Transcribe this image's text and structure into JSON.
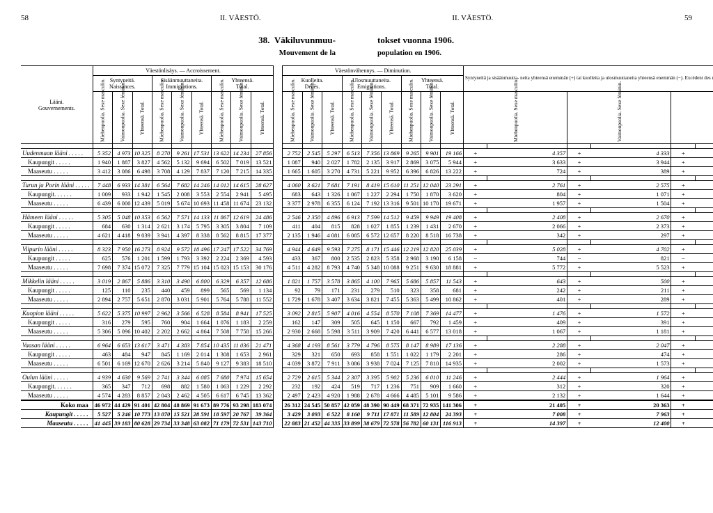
{
  "header": {
    "page_left": "58",
    "section_left": "II.  VÄESTÖ.",
    "section_right": "II.  VÄESTÖ.",
    "page_right": "59"
  },
  "title": {
    "number": "38.",
    "left": "Väkiluvunmuu-",
    "right": "tokset vuonna 1906.",
    "sub_left": "Mouvement de la",
    "sub_right": "population en 1906."
  },
  "leftcols": {
    "gov_fi": "Lääni.",
    "gov_fr": "Gouvernements.",
    "accr": "Väestönlisäys. — Accroissement.",
    "births_fi": "Syntyneitä.",
    "births_fr": "Naissances.",
    "immig_fi": "Sisäänmuuttaneita.",
    "immig_fr": "Immigrations.",
    "tot_fi": "Yhteensä.",
    "tot_fr": "Total.",
    "m": "Miehenpuolia. Sexe masculin.",
    "f": "Vaimonpuolia. Sexe féminin.",
    "t": "Yhteensä. Total."
  },
  "rightcols": {
    "dimin": "Väestönvähennys. — Diminution.",
    "deaths_fi": "Kuolleita.",
    "deaths_fr": "Décès.",
    "emig_fi": "Ulosmuuttaneita.",
    "emig_fr": "Emigrations.",
    "tot_fi": "Yhteensä.",
    "tot_fr": "Total.",
    "excess": "Syntyneitä ja sisäänmuutta- neita yhteensä enemmän (+) tai kuolleita ja ulosmuuttaneita yhteensä enemmän (−). Excédent des naissances et des immigrations."
  },
  "rows": [
    {
      "label": "Uudenmaan lääni",
      "italic": true,
      "left": [
        "5 352",
        "4 973",
        "10 325",
        "8 270",
        "9 261",
        "17 531",
        "13 622",
        "14 234",
        "27 856"
      ],
      "right": [
        "2 752",
        "2 545",
        "5 297",
        "6 513",
        "7 356",
        "13 869",
        "9 265",
        "9 901",
        "19 166",
        "+",
        "4 357",
        "+",
        "4 333",
        "+",
        "8 690"
      ]
    },
    {
      "label": "Kaupungit",
      "indent": true,
      "left": [
        "1 940",
        "1 887",
        "3 827",
        "4 562",
        "5 132",
        "9 694",
        "6 502",
        "7 019",
        "13 521"
      ],
      "right": [
        "1 087",
        "940",
        "2 027",
        "1 782",
        "2 135",
        "3 917",
        "2 869",
        "3 075",
        "5 944",
        "+",
        "3 633",
        "+",
        "3 944",
        "+",
        "7 577"
      ]
    },
    {
      "label": "Maaseutu",
      "indent": true,
      "left": [
        "3 412",
        "3 086",
        "6 498",
        "3 708",
        "4 129",
        "7 837",
        "7 120",
        "7 215",
        "14 335"
      ],
      "right": [
        "1 665",
        "1 605",
        "3 270",
        "4 731",
        "5 221",
        "9 952",
        "6 396",
        "6 826",
        "13 222",
        "+",
        "724",
        "+",
        "389",
        "+",
        "1 113"
      ]
    },
    {
      "spacer": true
    },
    {
      "label": "Turun ja Porin lääni",
      "italic": true,
      "left": [
        "7 448",
        "6 933",
        "14 381",
        "6 564",
        "7 682",
        "14 246",
        "14 012",
        "14 615",
        "28 627"
      ],
      "right": [
        "4 060",
        "3 621",
        "7 681",
        "7 191",
        "8 419",
        "15 610",
        "11 251",
        "12 040",
        "23 291",
        "+",
        "2 761",
        "+",
        "2 575",
        "+",
        "5 336"
      ]
    },
    {
      "label": "Kaupungit.",
      "indent": true,
      "left": [
        "1 009",
        "933",
        "1 942",
        "1 545",
        "2 008",
        "3 553",
        "2 554",
        "2 941",
        "5 495"
      ],
      "right": [
        "683",
        "643",
        "1 326",
        "1 067",
        "1 227",
        "2 294",
        "1 750",
        "1 870",
        "3 620",
        "+",
        "804",
        "+",
        "1 071",
        "+",
        "1 875"
      ]
    },
    {
      "label": "Maaseutu",
      "indent": true,
      "left": [
        "6 439",
        "6 000",
        "12 439",
        "5 019",
        "5 674",
        "10 693",
        "11 458",
        "11 674",
        "23 132"
      ],
      "right": [
        "3 377",
        "2 978",
        "6 355",
        "6 124",
        "7 192",
        "13 316",
        "9 501",
        "10 170",
        "19 671",
        "+",
        "1 957",
        "+",
        "1 504",
        "+",
        "3 461"
      ]
    },
    {
      "spacer": true
    },
    {
      "label": "Hämeen lääni",
      "italic": true,
      "left": [
        "5 305",
        "5 048",
        "10 353",
        "6 562",
        "7 571",
        "14 133",
        "11 867",
        "12 619",
        "24 486"
      ],
      "right": [
        "2 546",
        "2 350",
        "4 896",
        "6 913",
        "7 599",
        "14 512",
        "9 459",
        "9 949",
        "19 408",
        "+",
        "2 408",
        "+",
        "2 670",
        "+",
        "5 078"
      ]
    },
    {
      "label": "Kaupungit",
      "indent": true,
      "left": [
        "684",
        "630",
        "1 314",
        "2 621",
        "3 174",
        "5 795",
        "3 305",
        "3 804",
        "7 109"
      ],
      "right": [
        "411",
        "404",
        "815",
        "828",
        "1 027",
        "1 855",
        "1 239",
        "1 431",
        "2 670",
        "+",
        "2 066",
        "+",
        "2 373",
        "+",
        "4 439"
      ]
    },
    {
      "label": "Maaseutu",
      "indent": true,
      "left": [
        "4 621",
        "4 418",
        "9 039",
        "3 941",
        "4 397",
        "8 338",
        "8 562",
        "8 815",
        "17 377"
      ],
      "right": [
        "2 135",
        "1 946",
        "4 081",
        "6 085",
        "6 572",
        "12 657",
        "8 220",
        "8 518",
        "16 738",
        "+",
        "342",
        "+",
        "297",
        "+",
        "639"
      ]
    },
    {
      "spacer": true
    },
    {
      "label": "Viipurin lääni",
      "italic": true,
      "left": [
        "8 323",
        "7 950",
        "16 273",
        "8 924",
        "9 572",
        "18 496",
        "17 247",
        "17 522",
        "34 769"
      ],
      "right": [
        "4 944",
        "4 649",
        "9 593",
        "7 275",
        "8 171",
        "15 446",
        "12 219",
        "12 820",
        "25 039",
        "+",
        "5 028",
        "+",
        "4 702",
        "+",
        "9 730"
      ]
    },
    {
      "label": "Kaupungit",
      "indent": true,
      "left": [
        "625",
        "576",
        "1 201",
        "1 599",
        "1 793",
        "3 392",
        "2 224",
        "2 369",
        "4 593"
      ],
      "right": [
        "433",
        "367",
        "800",
        "2 535",
        "2 823",
        "5 358",
        "2 968",
        "3 190",
        "6 158",
        "−",
        "744",
        "−",
        "821",
        "−",
        "1 565"
      ]
    },
    {
      "label": "Maaseutu",
      "indent": true,
      "left": [
        "7 698",
        "7 374",
        "15 072",
        "7 325",
        "7 779",
        "15 104",
        "15 023",
        "15 153",
        "30 176"
      ],
      "right": [
        "4 511",
        "4 282",
        "8 793",
        "4 740",
        "5 348",
        "10 088",
        "9 251",
        "9 630",
        "18 881",
        "+",
        "5 772",
        "+",
        "5 523",
        "+",
        "11 295"
      ]
    },
    {
      "spacer": true
    },
    {
      "label": "Mikkelin lääni",
      "italic": true,
      "left": [
        "3 019",
        "2 867",
        "5 886",
        "3 310",
        "3 490",
        "6 800",
        "6 329",
        "6 357",
        "12 686"
      ],
      "right": [
        "1 821",
        "1 757",
        "3 578",
        "3 865",
        "4 100",
        "7 965",
        "5 686",
        "5 857",
        "11 543",
        "+",
        "643",
        "+",
        "500",
        "+",
        "1 143"
      ]
    },
    {
      "label": "Kaupungit",
      "indent": true,
      "left": [
        "125",
        "110",
        "235",
        "440",
        "459",
        "899",
        "565",
        "569",
        "1 134"
      ],
      "right": [
        "92",
        "79",
        "171",
        "231",
        "279",
        "510",
        "323",
        "358",
        "681",
        "+",
        "242",
        "+",
        "211",
        "+",
        "453"
      ]
    },
    {
      "label": "Maaseutu",
      "indent": true,
      "left": [
        "2 894",
        "2 757",
        "5 651",
        "2 870",
        "3 031",
        "5 901",
        "5 764",
        "5 788",
        "11 552"
      ],
      "right": [
        "1 729",
        "1 678",
        "3 407",
        "3 634",
        "3 821",
        "7 455",
        "5 363",
        "5 499",
        "10 862",
        "+",
        "401",
        "+",
        "289",
        "+",
        "690"
      ]
    },
    {
      "spacer": true
    },
    {
      "label": "Kuopion lääni",
      "italic": true,
      "left": [
        "5 622",
        "5 375",
        "10 997",
        "2 962",
        "3 566",
        "6 528",
        "8 584",
        "8 941",
        "17 525"
      ],
      "right": [
        "3 092",
        "2 815",
        "5 907",
        "4 016",
        "4 554",
        "8 570",
        "7 108",
        "7 369",
        "14 477",
        "+",
        "1 476",
        "+",
        "1 572",
        "+",
        "3 048"
      ]
    },
    {
      "label": "Kaupungit",
      "indent": true,
      "left": [
        "316",
        "279",
        "595",
        "760",
        "904",
        "1 664",
        "1 076",
        "1 183",
        "2 259"
      ],
      "right": [
        "162",
        "147",
        "309",
        "505",
        "645",
        "1 150",
        "667",
        "792",
        "1 459",
        "+",
        "409",
        "+",
        "391",
        "+",
        "800"
      ]
    },
    {
      "label": "Maaseutu",
      "indent": true,
      "left": [
        "5 306",
        "5 096",
        "10 402",
        "2 202",
        "2 662",
        "4 864",
        "7 508",
        "7 758",
        "15 266"
      ],
      "right": [
        "2 930",
        "2 668",
        "5 598",
        "3 511",
        "3 909",
        "7 420",
        "6 441",
        "6 577",
        "13 018",
        "+",
        "1 067",
        "+",
        "1 181",
        "+",
        "2 248"
      ]
    },
    {
      "spacer": true
    },
    {
      "label": "Vaasan lääni",
      "italic": true,
      "left": [
        "6 964",
        "6 653",
        "13 617",
        "3 471",
        "4 383",
        "7 854",
        "10 435",
        "11 036",
        "21 471"
      ],
      "right": [
        "4 368",
        "4 193",
        "8 561",
        "3 779",
        "4 796",
        "8 575",
        "8 147",
        "8 989",
        "17 136",
        "+",
        "2 288",
        "+",
        "2 047",
        "+",
        "4 335"
      ]
    },
    {
      "label": "Kaupungit",
      "indent": true,
      "left": [
        "463",
        "484",
        "947",
        "845",
        "1 169",
        "2 014",
        "1 308",
        "1 653",
        "2 961"
      ],
      "right": [
        "329",
        "321",
        "650",
        "693",
        "858",
        "1 551",
        "1 022",
        "1 179",
        "2 201",
        "+",
        "286",
        "+",
        "474",
        "+",
        "760"
      ]
    },
    {
      "label": "Maaseutu",
      "indent": true,
      "left": [
        "6 501",
        "6 169",
        "12 670",
        "2 626",
        "3 214",
        "5 840",
        "9 127",
        "9 383",
        "18 510"
      ],
      "right": [
        "4 039",
        "3 872",
        "7 911",
        "3 086",
        "3 938",
        "7 024",
        "7 125",
        "7 810",
        "14 935",
        "+",
        "2 002",
        "+",
        "1 573",
        "+",
        "3 575"
      ]
    },
    {
      "spacer": true
    },
    {
      "label": "Oulun lääni",
      "italic": true,
      "left": [
        "4 939",
        "4 630",
        "9 569",
        "2 741",
        "3 344",
        "6 085",
        "7 680",
        "7 974",
        "15 654"
      ],
      "right": [
        "2 729",
        "2 615",
        "5 344",
        "2 307",
        "3 395",
        "5 902",
        "5 236",
        "6 010",
        "11 246",
        "+",
        "2 444",
        "+",
        "1 964",
        "+",
        "4 408"
      ]
    },
    {
      "label": "Kaupungit.",
      "indent": true,
      "left": [
        "365",
        "347",
        "712",
        "698",
        "882",
        "1 580",
        "1 063",
        "1 229",
        "2 292"
      ],
      "right": [
        "232",
        "192",
        "424",
        "519",
        "717",
        "1 236",
        "751",
        "909",
        "1 660",
        "+",
        "312",
        "+",
        "320",
        "+",
        "632"
      ]
    },
    {
      "label": "Maaseutu",
      "indent": true,
      "left": [
        "4 574",
        "4 283",
        "8 857",
        "2 043",
        "2 462",
        "4 505",
        "6 617",
        "6 745",
        "13 362"
      ],
      "right": [
        "2 497",
        "2 423",
        "4 920",
        "1 988",
        "2 678",
        "4 666",
        "4 485",
        "5 101",
        "9 586",
        "+",
        "2 132",
        "+",
        "1 644",
        "+",
        "3 776"
      ]
    }
  ],
  "totals": [
    {
      "label": "Koko maa",
      "left": [
        "46 972",
        "44 429",
        "91 401",
        "42 804",
        "48 869",
        "91 673",
        "89 776",
        "93 298",
        "183 074"
      ],
      "right": [
        "26 312",
        "24 545",
        "50 857",
        "42 059",
        "48 390",
        "90 449",
        "68 371",
        "72 935",
        "141 306",
        "+",
        "21 405",
        "+",
        "20 363",
        "+",
        "41 768"
      ]
    },
    {
      "label": "Kaupungit",
      "italic": true,
      "left": [
        "5 527",
        "5 246",
        "10 773",
        "13 070",
        "15 521",
        "28 591",
        "18 597",
        "20 767",
        "39 364"
      ],
      "right": [
        "3 429",
        "3 093",
        "6 522",
        "8 160",
        "9 711",
        "17 871",
        "11 589",
        "12 804",
        "24 393",
        "+",
        "7 008",
        "+",
        "7 963",
        "+",
        "14 971"
      ]
    },
    {
      "label": "Maaseutu",
      "italic": true,
      "left": [
        "41 445",
        "39 183",
        "80 628",
        "29 734",
        "33 348",
        "63 082",
        "71 179",
        "72 531",
        "143 710"
      ],
      "right": [
        "22 883",
        "21 452",
        "44 335",
        "33 899",
        "38 679",
        "72 578",
        "56 782",
        "60 131",
        "116 913",
        "+",
        "14 397",
        "+",
        "12 400",
        "+",
        "26 797"
      ]
    }
  ]
}
